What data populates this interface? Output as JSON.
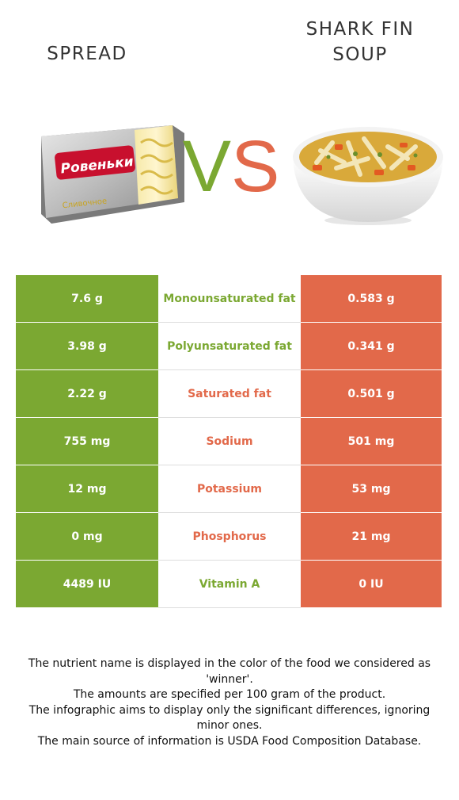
{
  "header": {
    "left_title": "SPREAD",
    "right_title": "SHARK FIN SOUP",
    "vs_v": "V",
    "vs_s": "S"
  },
  "images": {
    "left": {
      "brand_text": "Ровеньки",
      "subtitle": "Сливочное"
    },
    "right": {
      "name": "soup-bowl"
    }
  },
  "colors": {
    "left_accent": "#7ba832",
    "right_accent": "#e2694a"
  },
  "rows": [
    {
      "left": "7.6 g",
      "nutrient": "Monounsaturated fat",
      "right": "0.583 g",
      "winner": "left"
    },
    {
      "left": "3.98 g",
      "nutrient": "Polyunsaturated fat",
      "right": "0.341 g",
      "winner": "left"
    },
    {
      "left": "2.22 g",
      "nutrient": "Saturated fat",
      "right": "0.501 g",
      "winner": "right"
    },
    {
      "left": "755 mg",
      "nutrient": "Sodium",
      "right": "501 mg",
      "winner": "right"
    },
    {
      "left": "12 mg",
      "nutrient": "Potassium",
      "right": "53 mg",
      "winner": "right"
    },
    {
      "left": "0 mg",
      "nutrient": "Phosphorus",
      "right": "21 mg",
      "winner": "right"
    },
    {
      "left": "4489 IU",
      "nutrient": "Vitamin A",
      "right": "0 IU",
      "winner": "left"
    }
  ],
  "notes": [
    "The nutrient name is displayed in the color of the food we considered as 'winner'.",
    "The amounts are specified per 100 gram of the product.",
    "The infographic aims to display only the significant differences, ignoring minor ones.",
    "The main source of information is USDA Food Composition Database."
  ]
}
